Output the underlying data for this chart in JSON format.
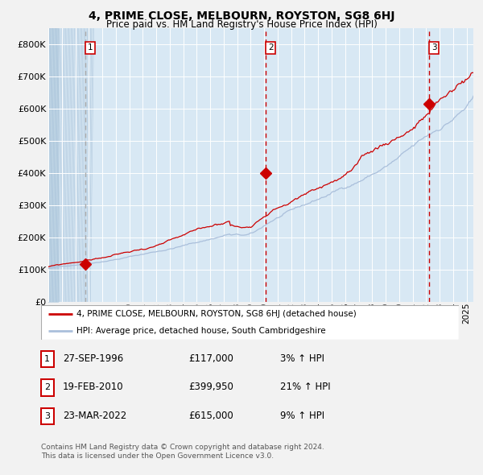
{
  "title": "4, PRIME CLOSE, MELBOURN, ROYSTON, SG8 6HJ",
  "subtitle": "Price paid vs. HM Land Registry's House Price Index (HPI)",
  "hpi_color": "#aabfdb",
  "price_color": "#cc0000",
  "vline_color": "#cc0000",
  "plot_bg": "#d8e8f4",
  "fig_bg": "#f2f2f2",
  "grid_color": "#ffffff",
  "ylim": [
    0,
    850000
  ],
  "yticks": [
    0,
    100000,
    200000,
    300000,
    400000,
    500000,
    600000,
    700000,
    800000
  ],
  "ytick_labels": [
    "£0",
    "£100K",
    "£200K",
    "£300K",
    "£400K",
    "£500K",
    "£600K",
    "£700K",
    "£800K"
  ],
  "sales": [
    {
      "num": 1,
      "date_label": "27-SEP-1996",
      "price": 117000,
      "price_label": "£117,000",
      "pct": "3%",
      "x_plot": 1996.74
    },
    {
      "num": 2,
      "date_label": "19-FEB-2010",
      "price": 399950,
      "price_label": "£399,950",
      "pct": "21%",
      "x_plot": 2010.13
    },
    {
      "num": 3,
      "date_label": "23-MAR-2022",
      "price": 615000,
      "price_label": "£615,000",
      "pct": "9%",
      "x_plot": 2022.23
    }
  ],
  "legend_label_price": "4, PRIME CLOSE, MELBOURN, ROYSTON, SG8 6HJ (detached house)",
  "legend_label_hpi": "HPI: Average price, detached house, South Cambridgeshire",
  "footer1": "Contains HM Land Registry data © Crown copyright and database right 2024.",
  "footer2": "This data is licensed under the Open Government Licence v3.0.",
  "xmin": 1994.0,
  "xmax": 2025.5,
  "hatch_end": 1994.7
}
